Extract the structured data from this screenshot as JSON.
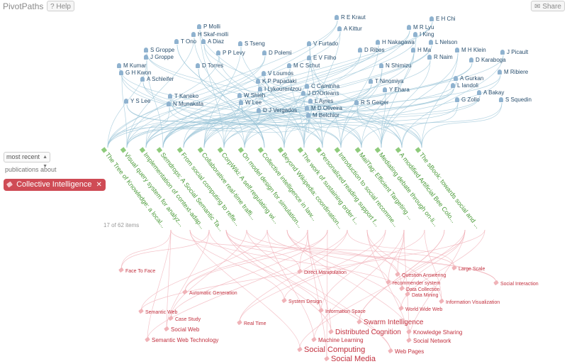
{
  "app": {
    "title": "PivotPaths",
    "help_label": "Help",
    "share_label": "Share"
  },
  "controls": {
    "sort_value": "most recent",
    "publications_about": "publications about",
    "filter": "Collective Intelligence",
    "item_count": "17 of 62 items"
  },
  "colors": {
    "author": "#2a4f6e",
    "publication": "#4a9a38",
    "keyword": "#c2303e",
    "filter_pill": "#cf4b55"
  },
  "authors": [
    "R E Kraut",
    "A Kittur",
    "E H Chi",
    "M R Lyu",
    "I King",
    "L Nelson",
    "P Molli",
    "H Skaf-molli",
    "T Ono",
    "A Diaz",
    "S Tseng",
    "V Furtado",
    "H Nakagawa",
    "H Ma",
    "M H Klein",
    "J Picault",
    "S Groppe",
    "J Groppe",
    "P P Levy",
    "D Polemi",
    "D Ribes",
    "R Naim",
    "D Karaboga",
    "M Kumar",
    "G H Kwon",
    "D Torres",
    "E V Filho",
    "M C Schut",
    "N Shimizu",
    "M Ribiere",
    "A Schleifer",
    "V Loumos",
    "K P Papadaki",
    "I Lykourentzou",
    "T Ninomiya",
    "A Gurkan",
    "L Iandoli",
    "C Caminha",
    "Y Ehara",
    "W Shieh",
    "J D?Orleans",
    "A Bakay",
    "T Kaneko",
    "W Lee",
    "L Ayres",
    "Y S Lee",
    "N Munakata",
    "M D Oliveira",
    "R S Geiger",
    "G Zollo",
    "S Squedin",
    "D J Vergados",
    "M Belchior"
  ],
  "publications": [
    "The Tree of Knowledge: a local...",
    "Visual query system for analyz...",
    "Implementation of context-adap...",
    "Semdrops: A Social Semantic Ta...",
    "From social computing to refle...",
    "Collaborative real-time traffi...",
    "CorpWiki: A self-regulating wi...",
    "On model design for simulation...",
    "Collective intelligence in law...",
    "Beyond Wikipedia: coordination...",
    "The work of sustaining order i...",
    "Personalized reading support f...",
    "Introduction to social recomme...",
    "MailTag: Efficient Targeting ...",
    "Mediating debate through on-li...",
    "A modified Artificial Bee Colo...",
    "The sBook: towards social and ..."
  ],
  "keywords": [
    "Face To Face",
    "Direct Manipulation",
    "Question Answering",
    "Large Scale",
    "recommender system",
    "Data Collection",
    "Data Mining",
    "Social Interaction",
    "Automatic Generation",
    "Information Visualization",
    "System Design",
    "World Wide Web",
    "Information Space",
    "Semantic Web",
    "Case Study",
    "Real Time",
    "Swarm Intelligence",
    "Social Web",
    "Distributed Cognition",
    "Knowledge Sharing",
    "Semantic Web Technology",
    "Machine Learning",
    "Social Network",
    "Social Computing",
    "Web Pages",
    "Social Media"
  ]
}
